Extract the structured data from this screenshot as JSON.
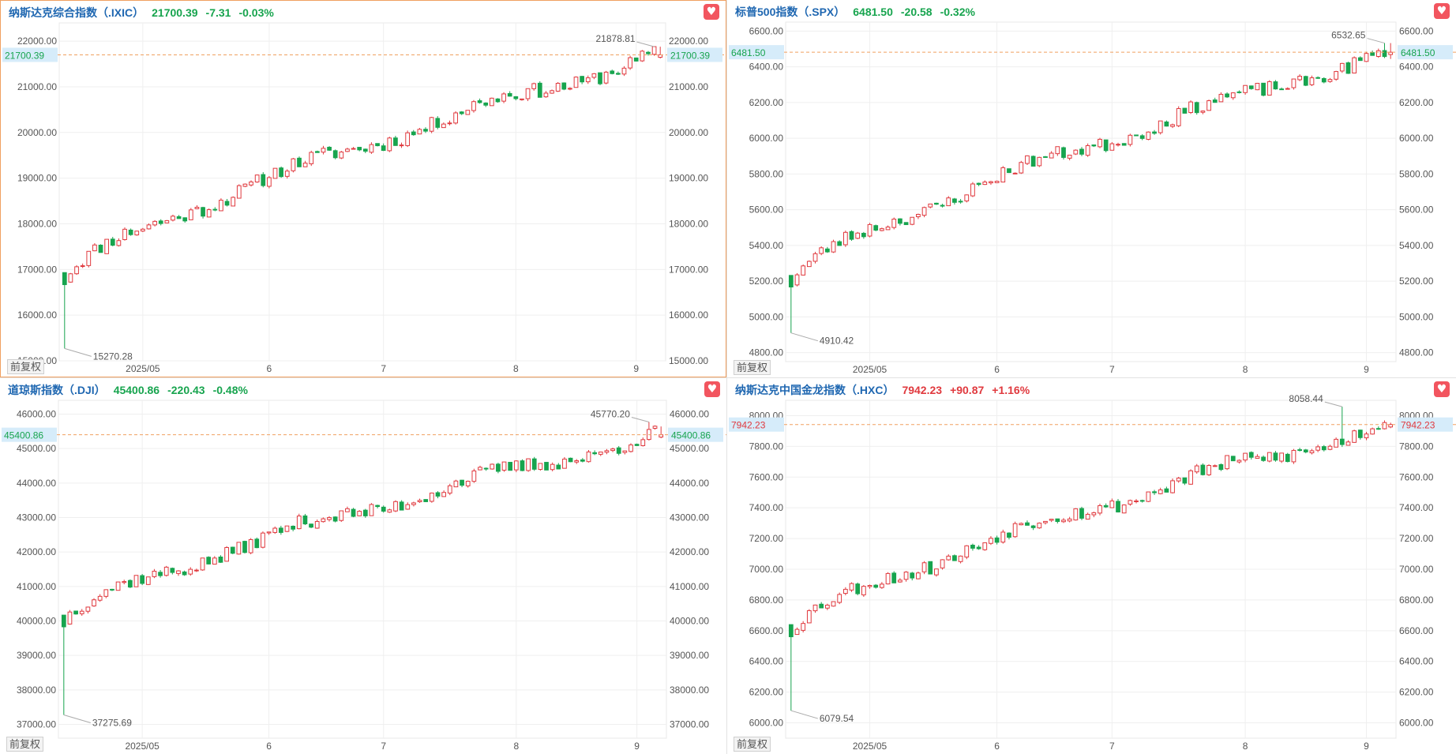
{
  "colors": {
    "up": "#e0393e",
    "down": "#17a44e",
    "name": "#1f67b1",
    "grid": "#eeeeee",
    "axis_text": "#555555",
    "price_line": "#f0a060",
    "price_tag_bg": "#d6ecfa",
    "fav_bg": "#f2555f",
    "active_border": "#f0a060"
  },
  "favorite_icon": "heart-icon",
  "panels": [
    {
      "name": "纳斯达克综合指数（.IXIC）",
      "price": "21700.39",
      "change": "-7.31",
      "change_pct": "-0.03%",
      "direction": "down",
      "adjust_label": "前复权",
      "chart_data": {
        "type": "candlestick",
        "y_range": [
          15000,
          22400
        ],
        "y_ticks": [
          15000,
          16000,
          17000,
          18000,
          19000,
          20000,
          21000,
          22000
        ],
        "y_tick_labels": [
          "15000.00",
          "16000.00",
          "17000.00",
          "18000.00",
          "19000.00",
          "20000.00",
          "21000.00",
          "22000.00"
        ],
        "x_labels": [
          "2025/05",
          "6",
          "7",
          "8",
          "9"
        ],
        "x_label_index": [
          13,
          34,
          53,
          75,
          95
        ],
        "current_price": 21700.39,
        "current_price_label": "21700.39",
        "max_value": 21878.81,
        "max_label": "21878.81",
        "max_index": 98,
        "min_value": 15270.28,
        "min_label": "15270.28",
        "min_index": 0,
        "start": 16800,
        "end": 21700.39,
        "seed": 11,
        "n": 100
      }
    },
    {
      "name": "标普500指数（.SPX）",
      "price": "6481.50",
      "change": "-20.58",
      "change_pct": "-0.32%",
      "direction": "down",
      "adjust_label": "前复权",
      "chart_data": {
        "type": "candlestick",
        "y_range": [
          4750,
          6650
        ],
        "y_ticks": [
          4800,
          5000,
          5200,
          5400,
          5600,
          5800,
          6000,
          6200,
          6400,
          6600
        ],
        "y_tick_labels": [
          "4800.00",
          "5000.00",
          "5200.00",
          "5400.00",
          "5600.00",
          "5800.00",
          "6000.00",
          "6200.00",
          "6400.00",
          "6600.00"
        ],
        "x_labels": [
          "2025/05",
          "6",
          "7",
          "8",
          "9"
        ],
        "x_label_index": [
          13,
          34,
          53,
          75,
          95
        ],
        "current_price": 6481.5,
        "current_price_label": "6481.50",
        "max_value": 6532.65,
        "max_label": "6532.65",
        "max_index": 98,
        "min_value": 4910.42,
        "min_label": "4910.42",
        "min_index": 0,
        "start": 5200,
        "end": 6481.5,
        "seed": 23,
        "n": 100
      }
    },
    {
      "name": "道琼斯指数（.DJI）",
      "price": "45400.86",
      "change": "-220.43",
      "change_pct": "-0.48%",
      "direction": "down",
      "adjust_label": "前复权",
      "chart_data": {
        "type": "candlestick",
        "y_range": [
          36600,
          46400
        ],
        "y_ticks": [
          37000,
          38000,
          39000,
          40000,
          41000,
          42000,
          43000,
          44000,
          45000,
          46000
        ],
        "y_tick_labels": [
          "37000.00",
          "38000.00",
          "39000.00",
          "40000.00",
          "41000.00",
          "42000.00",
          "43000.00",
          "44000.00",
          "45000.00",
          "46000.00"
        ],
        "x_labels": [
          "2025/05",
          "6",
          "7",
          "8",
          "9"
        ],
        "x_label_index": [
          13,
          34,
          53,
          75,
          95
        ],
        "current_price": 45400.86,
        "current_price_label": "45400.86",
        "max_value": 45770.2,
        "max_label": "45770.20",
        "max_index": 97,
        "min_value": 37275.69,
        "min_label": "37275.69",
        "min_index": 0,
        "start": 40000,
        "end": 45400.86,
        "seed": 37,
        "n": 100
      }
    },
    {
      "name": "纳斯达克中国金龙指数（.HXC）",
      "price": "7942.23",
      "change": "+90.87",
      "change_pct": "+1.16%",
      "direction": "up",
      "adjust_label": "前复权",
      "chart_data": {
        "type": "candlestick",
        "y_range": [
          5900,
          8100
        ],
        "y_ticks": [
          6000,
          6200,
          6400,
          6600,
          6800,
          7000,
          7200,
          7400,
          7600,
          7800,
          8000
        ],
        "y_tick_labels": [
          "6000.00",
          "6200.00",
          "6400.00",
          "6600.00",
          "6800.00",
          "7000.00",
          "7200.00",
          "7400.00",
          "7600.00",
          "7800.00",
          "8000.00"
        ],
        "x_labels": [
          "2025/05",
          "6",
          "7",
          "8",
          "9"
        ],
        "x_label_index": [
          13,
          34,
          53,
          75,
          95
        ],
        "current_price": 7942.23,
        "current_price_label": "7942.23",
        "max_value": 8058.44,
        "max_label": "8058.44",
        "max_index": 91,
        "min_value": 6079.54,
        "min_label": "6079.54",
        "min_index": 0,
        "start": 6600,
        "end": 7942.23,
        "seed": 53,
        "n": 100
      }
    }
  ]
}
